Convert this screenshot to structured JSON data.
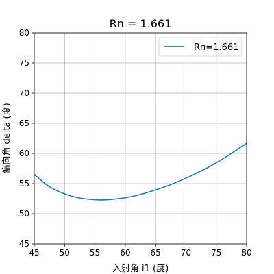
{
  "chart_data": {
    "type": "line",
    "title": "Rn = 1.661",
    "xlabel": "入射角 i1 (度)",
    "ylabel": "偏向角 delta (度)",
    "xlim": [
      45,
      80
    ],
    "ylim": [
      45,
      80
    ],
    "xticks": [
      45,
      50,
      55,
      60,
      65,
      70,
      75,
      80
    ],
    "yticks": [
      45,
      50,
      55,
      60,
      65,
      70,
      75,
      80
    ],
    "grid": true,
    "legend": "top-right",
    "series": [
      {
        "name": "Rn=1.661",
        "color": "#1f77b4",
        "x": [
          45,
          47.5,
          50,
          52.5,
          55,
          56.2,
          57.5,
          60,
          62.5,
          65,
          67.5,
          70,
          72.5,
          75,
          77.5,
          80
        ],
        "y": [
          56.5,
          54.5,
          53.3,
          52.6,
          52.32,
          52.28,
          52.35,
          52.65,
          53.2,
          53.95,
          54.85,
          55.9,
          57.1,
          58.45,
          60.0,
          61.7
        ]
      }
    ]
  }
}
